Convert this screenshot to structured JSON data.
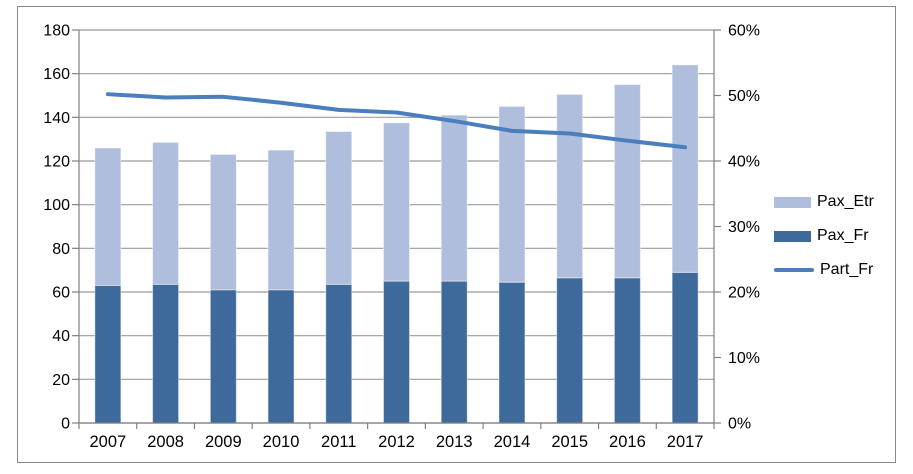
{
  "chart_data": {
    "type": "combo-stacked-bar-line",
    "title": "",
    "categories": [
      "2007",
      "2008",
      "2009",
      "2010",
      "2011",
      "2012",
      "2013",
      "2014",
      "2015",
      "2016",
      "2017"
    ],
    "series": [
      {
        "name": "Pax_Fr",
        "type": "bar",
        "role": "stack-bottom",
        "axis": "left",
        "color": "#3e6a9b",
        "values": [
          63,
          63.5,
          61,
          61,
          63.5,
          65,
          65,
          64.5,
          66.5,
          66.5,
          69
        ]
      },
      {
        "name": "Pax_Etr",
        "type": "bar",
        "role": "stack-top",
        "axis": "left",
        "color": "#afbedc",
        "values": [
          63,
          65,
          62,
          64,
          70,
          72.5,
          76,
          80.5,
          84,
          88.5,
          95
        ]
      },
      {
        "name": "Part_Fr",
        "type": "line",
        "role": "line",
        "axis": "right",
        "color": "#4a7ebc",
        "unit": "%",
        "values": [
          50.2,
          49.7,
          49.8,
          48.9,
          47.8,
          47.4,
          46.1,
          44.6,
          44.2,
          43.1,
          42.1
        ]
      }
    ],
    "stacked_totals": [
      126,
      128.5,
      123,
      125,
      133.5,
      137.5,
      141,
      145,
      150.5,
      155,
      164
    ],
    "left_axis": {
      "min": 0,
      "max": 180,
      "step": 20,
      "tick_labels": [
        "0",
        "20",
        "40",
        "60",
        "80",
        "100",
        "120",
        "140",
        "160",
        "180"
      ]
    },
    "right_axis": {
      "min": 0,
      "max": 60,
      "step": 10,
      "tick_labels": [
        "0%",
        "10%",
        "20%",
        "30%",
        "40%",
        "50%",
        "60%"
      ]
    },
    "grid": true,
    "legend_position": "right-middle"
  },
  "legend": {
    "items": [
      {
        "label": "Pax_Etr",
        "swatch": "bar",
        "color": "#afbedc"
      },
      {
        "label": "Pax_Fr",
        "swatch": "bar",
        "color": "#3e6a9b"
      },
      {
        "label": "Part_Fr",
        "swatch": "line",
        "color": "#4a7ebc"
      }
    ]
  },
  "colors": {
    "background": "#ffffff",
    "frame_border": "#8a8a8a",
    "gridline": "#9b9b9b",
    "axis_line": "#808080",
    "text": "#000000",
    "bar_edge_highlight": "rgba(255,255,255,0.45)"
  }
}
